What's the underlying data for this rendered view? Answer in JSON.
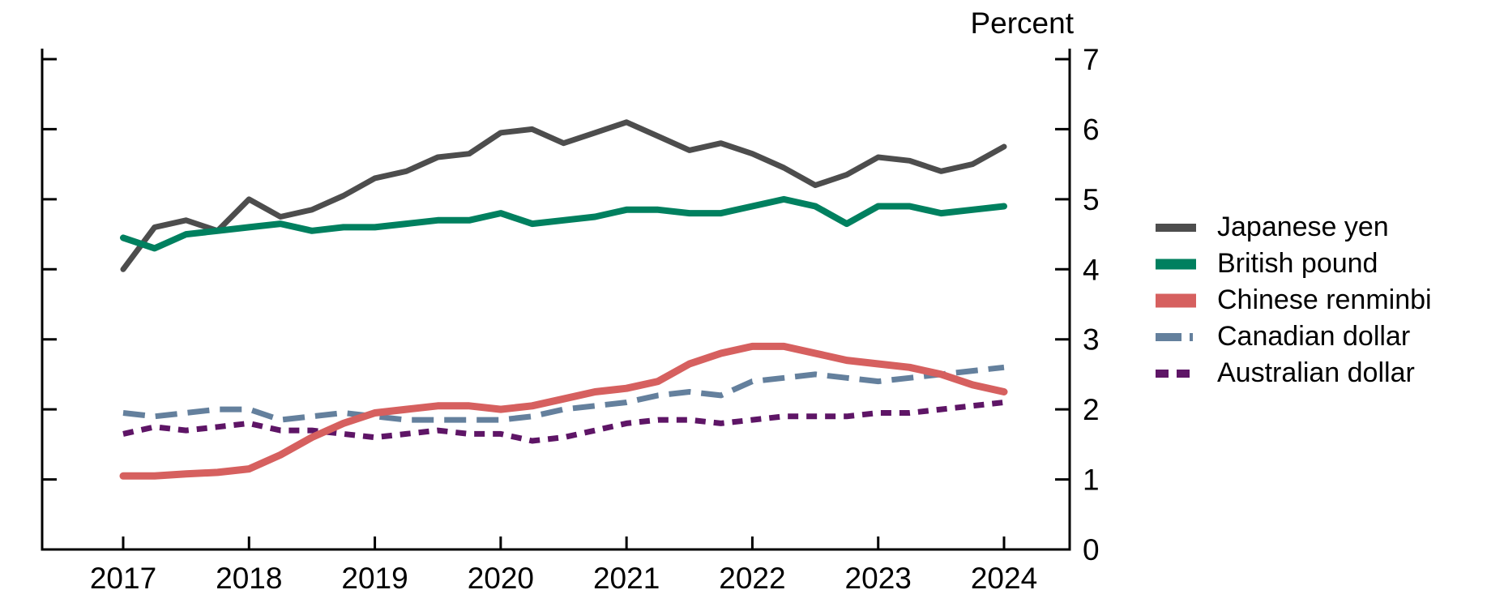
{
  "chart_data": {
    "type": "line",
    "unit_label": "Percent",
    "x_tick_labels": [
      "2017",
      "2018",
      "2019",
      "2020",
      "2021",
      "2022",
      "2023",
      "2024"
    ],
    "x_points_per_year": 4,
    "ylim": [
      0,
      7
    ],
    "yticks": [
      "0",
      "1",
      "2",
      "3",
      "4",
      "5",
      "6",
      "7"
    ],
    "grid": "off",
    "legend_position": "right",
    "series": [
      {
        "name": "Japanese yen",
        "color": "#4d4d4d",
        "style": "solid",
        "width": 7,
        "values": [
          4.0,
          4.6,
          4.7,
          4.55,
          5.0,
          4.75,
          4.85,
          5.05,
          5.3,
          5.4,
          5.6,
          5.65,
          5.95,
          6.0,
          5.8,
          5.95,
          6.1,
          5.9,
          5.7,
          5.8,
          5.65,
          5.45,
          5.2,
          5.35,
          5.6,
          5.55,
          5.4,
          5.5,
          5.75
        ]
      },
      {
        "name": "British pound",
        "color": "#00805f",
        "style": "solid",
        "width": 8,
        "values": [
          4.45,
          4.3,
          4.5,
          4.55,
          4.6,
          4.65,
          4.55,
          4.6,
          4.6,
          4.65,
          4.7,
          4.7,
          4.8,
          4.65,
          4.7,
          4.75,
          4.85,
          4.85,
          4.8,
          4.8,
          4.9,
          5.0,
          4.9,
          4.65,
          4.9,
          4.9,
          4.8,
          4.85,
          4.9
        ]
      },
      {
        "name": "Chinese renminbi",
        "color": "#d6605f",
        "style": "solid",
        "width": 9,
        "values": [
          1.05,
          1.05,
          1.08,
          1.1,
          1.15,
          1.35,
          1.6,
          1.8,
          1.95,
          2.0,
          2.05,
          2.05,
          2.0,
          2.05,
          2.15,
          2.25,
          2.3,
          2.4,
          2.65,
          2.8,
          2.9,
          2.9,
          2.8,
          2.7,
          2.65,
          2.6,
          2.5,
          2.35,
          2.25
        ]
      },
      {
        "name": "Canadian dollar",
        "color": "#64809d",
        "style": "long-dash",
        "width": 7,
        "values": [
          1.95,
          1.9,
          1.95,
          2.0,
          2.0,
          1.85,
          1.9,
          1.95,
          1.9,
          1.85,
          1.85,
          1.85,
          1.85,
          1.9,
          2.0,
          2.05,
          2.1,
          2.2,
          2.25,
          2.2,
          2.4,
          2.45,
          2.5,
          2.45,
          2.4,
          2.45,
          2.5,
          2.55,
          2.6
        ]
      },
      {
        "name": "Australian dollar",
        "color": "#5e1566",
        "style": "dash",
        "width": 7,
        "values": [
          1.65,
          1.75,
          1.7,
          1.75,
          1.8,
          1.7,
          1.7,
          1.65,
          1.6,
          1.65,
          1.7,
          1.65,
          1.65,
          1.55,
          1.6,
          1.7,
          1.8,
          1.85,
          1.85,
          1.8,
          1.85,
          1.9,
          1.9,
          1.9,
          1.95,
          1.95,
          2.0,
          2.05,
          2.1
        ]
      }
    ]
  }
}
